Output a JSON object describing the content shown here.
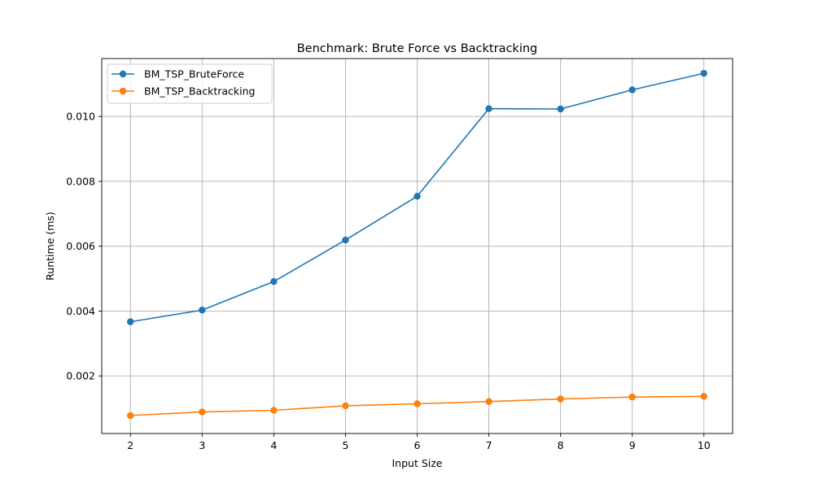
{
  "chart_data": {
    "type": "line",
    "title": "Benchmark: Brute Force vs Backtracking",
    "xlabel": "Input Size",
    "ylabel": "Runtime (ms)",
    "x": [
      2,
      3,
      4,
      5,
      6,
      7,
      8,
      9,
      10
    ],
    "x_ticks": [
      2,
      3,
      4,
      5,
      6,
      7,
      8,
      9,
      10
    ],
    "y_ticks": [
      0.002,
      0.004,
      0.006,
      0.008,
      0.01
    ],
    "y_tick_labels": [
      "0.002",
      "0.004",
      "0.006",
      "0.008",
      "0.010"
    ],
    "xlim": [
      1.6,
      10.4
    ],
    "ylim": [
      0.000225,
      0.011785
    ],
    "grid": true,
    "legend_position": "top-left",
    "series": [
      {
        "name": "BM_TSP_BruteForce",
        "color": "#1f77b4",
        "marker": "circle",
        "values": [
          0.00367,
          0.00403,
          0.00491,
          0.00619,
          0.00754,
          0.01024,
          0.01023,
          0.01082,
          0.01133
        ]
      },
      {
        "name": "BM_TSP_Backtracking",
        "color": "#ff7f0e",
        "marker": "circle",
        "values": [
          0.00078,
          0.00089,
          0.00094,
          0.00108,
          0.00114,
          0.00121,
          0.00129,
          0.00135,
          0.00137
        ]
      }
    ]
  }
}
